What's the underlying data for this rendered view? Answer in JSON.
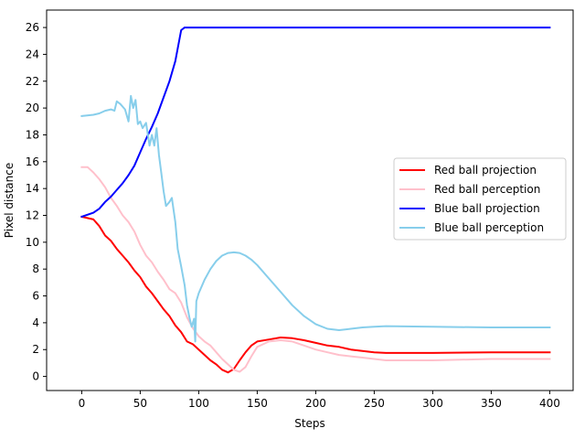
{
  "chart_data": {
    "type": "line",
    "title": "",
    "xlabel": "Steps",
    "ylabel": "Pixel distance",
    "xlim": [
      -30,
      420
    ],
    "ylim": [
      -1.05,
      27.3
    ],
    "xticks": [
      0,
      50,
      100,
      150,
      200,
      250,
      300,
      350,
      400
    ],
    "yticks": [
      0,
      2,
      4,
      6,
      8,
      10,
      12,
      14,
      16,
      18,
      20,
      22,
      24,
      26
    ],
    "grid": false,
    "legend_position": "center-right",
    "series": [
      {
        "name": "Red ball projection",
        "color": "#ff0000",
        "points": [
          [
            0,
            11.9
          ],
          [
            10,
            11.7
          ],
          [
            15,
            11.2
          ],
          [
            20,
            10.5
          ],
          [
            25,
            10.1
          ],
          [
            30,
            9.5
          ],
          [
            35,
            9.0
          ],
          [
            40,
            8.5
          ],
          [
            45,
            7.9
          ],
          [
            50,
            7.4
          ],
          [
            55,
            6.7
          ],
          [
            60,
            6.2
          ],
          [
            65,
            5.6
          ],
          [
            70,
            5.0
          ],
          [
            75,
            4.5
          ],
          [
            80,
            3.8
          ],
          [
            85,
            3.3
          ],
          [
            90,
            2.6
          ],
          [
            95,
            2.4
          ],
          [
            100,
            2.0
          ],
          [
            105,
            1.6
          ],
          [
            110,
            1.2
          ],
          [
            115,
            0.9
          ],
          [
            120,
            0.5
          ],
          [
            125,
            0.3
          ],
          [
            130,
            0.55
          ],
          [
            135,
            1.2
          ],
          [
            140,
            1.8
          ],
          [
            145,
            2.3
          ],
          [
            150,
            2.6
          ],
          [
            160,
            2.75
          ],
          [
            170,
            2.9
          ],
          [
            180,
            2.85
          ],
          [
            190,
            2.7
          ],
          [
            200,
            2.5
          ],
          [
            210,
            2.3
          ],
          [
            220,
            2.2
          ],
          [
            230,
            2.0
          ],
          [
            240,
            1.9
          ],
          [
            250,
            1.8
          ],
          [
            260,
            1.75
          ],
          [
            300,
            1.75
          ],
          [
            350,
            1.8
          ],
          [
            400,
            1.8
          ]
        ]
      },
      {
        "name": "Red ball perception",
        "color": "#ffc0cb",
        "points": [
          [
            0,
            15.6
          ],
          [
            5,
            15.6
          ],
          [
            10,
            15.2
          ],
          [
            15,
            14.7
          ],
          [
            20,
            14.1
          ],
          [
            25,
            13.3
          ],
          [
            30,
            12.7
          ],
          [
            35,
            12.0
          ],
          [
            40,
            11.5
          ],
          [
            45,
            10.8
          ],
          [
            50,
            9.8
          ],
          [
            55,
            9.0
          ],
          [
            60,
            8.5
          ],
          [
            65,
            7.8
          ],
          [
            70,
            7.2
          ],
          [
            75,
            6.5
          ],
          [
            80,
            6.2
          ],
          [
            85,
            5.5
          ],
          [
            90,
            4.4
          ],
          [
            95,
            3.6
          ],
          [
            100,
            3.0
          ],
          [
            105,
            2.6
          ],
          [
            110,
            2.3
          ],
          [
            115,
            1.8
          ],
          [
            120,
            1.3
          ],
          [
            125,
            0.9
          ],
          [
            130,
            0.5
          ],
          [
            135,
            0.35
          ],
          [
            140,
            0.7
          ],
          [
            145,
            1.5
          ],
          [
            150,
            2.2
          ],
          [
            160,
            2.6
          ],
          [
            170,
            2.7
          ],
          [
            180,
            2.6
          ],
          [
            190,
            2.3
          ],
          [
            200,
            2.0
          ],
          [
            210,
            1.8
          ],
          [
            220,
            1.6
          ],
          [
            230,
            1.5
          ],
          [
            240,
            1.4
          ],
          [
            250,
            1.3
          ],
          [
            260,
            1.2
          ],
          [
            300,
            1.2
          ],
          [
            350,
            1.3
          ],
          [
            400,
            1.3
          ]
        ]
      },
      {
        "name": "Blue ball projection",
        "color": "#0000ff",
        "points": [
          [
            0,
            11.9
          ],
          [
            10,
            12.2
          ],
          [
            15,
            12.5
          ],
          [
            20,
            13.0
          ],
          [
            25,
            13.4
          ],
          [
            30,
            13.9
          ],
          [
            35,
            14.4
          ],
          [
            40,
            15.0
          ],
          [
            45,
            15.7
          ],
          [
            50,
            16.7
          ],
          [
            55,
            17.7
          ],
          [
            60,
            18.6
          ],
          [
            65,
            19.6
          ],
          [
            70,
            20.8
          ],
          [
            75,
            22.0
          ],
          [
            80,
            23.5
          ],
          [
            85,
            25.8
          ],
          [
            88,
            26.0
          ],
          [
            150,
            26.0
          ],
          [
            250,
            26.0
          ],
          [
            350,
            26.0
          ],
          [
            400,
            26.0
          ]
        ]
      },
      {
        "name": "Blue ball perception",
        "color": "#87ceeb",
        "points": [
          [
            0,
            19.4
          ],
          [
            10,
            19.5
          ],
          [
            15,
            19.6
          ],
          [
            20,
            19.8
          ],
          [
            25,
            19.9
          ],
          [
            28,
            19.8
          ],
          [
            30,
            20.5
          ],
          [
            33,
            20.3
          ],
          [
            37,
            19.9
          ],
          [
            40,
            19.0
          ],
          [
            42,
            20.9
          ],
          [
            44,
            20.0
          ],
          [
            46,
            20.6
          ],
          [
            48,
            18.8
          ],
          [
            50,
            19.0
          ],
          [
            52,
            18.5
          ],
          [
            55,
            18.9
          ],
          [
            58,
            17.2
          ],
          [
            60,
            18.0
          ],
          [
            62,
            17.2
          ],
          [
            64,
            18.5
          ],
          [
            66,
            16.5
          ],
          [
            68,
            15.2
          ],
          [
            70,
            13.8
          ],
          [
            72,
            12.7
          ],
          [
            75,
            13.0
          ],
          [
            77,
            13.3
          ],
          [
            80,
            11.5
          ],
          [
            82,
            9.5
          ],
          [
            85,
            8.2
          ],
          [
            88,
            6.8
          ],
          [
            90,
            5.3
          ],
          [
            92,
            4.4
          ],
          [
            94,
            3.7
          ],
          [
            96,
            4.3
          ],
          [
            97,
            2.6
          ],
          [
            98,
            5.6
          ],
          [
            100,
            6.2
          ],
          [
            105,
            7.2
          ],
          [
            110,
            8.0
          ],
          [
            115,
            8.6
          ],
          [
            120,
            9.0
          ],
          [
            125,
            9.2
          ],
          [
            130,
            9.25
          ],
          [
            135,
            9.2
          ],
          [
            140,
            9.0
          ],
          [
            145,
            8.7
          ],
          [
            150,
            8.3
          ],
          [
            160,
            7.3
          ],
          [
            170,
            6.3
          ],
          [
            180,
            5.3
          ],
          [
            190,
            4.5
          ],
          [
            200,
            3.9
          ],
          [
            210,
            3.55
          ],
          [
            220,
            3.45
          ],
          [
            230,
            3.55
          ],
          [
            240,
            3.65
          ],
          [
            250,
            3.7
          ],
          [
            260,
            3.75
          ],
          [
            300,
            3.7
          ],
          [
            350,
            3.65
          ],
          [
            400,
            3.65
          ]
        ]
      }
    ]
  }
}
